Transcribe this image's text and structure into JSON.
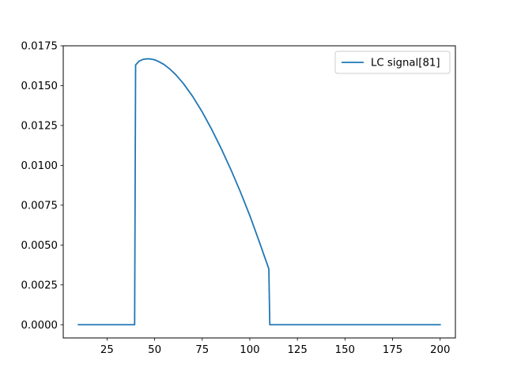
{
  "chart_data": {
    "type": "line",
    "title": "",
    "xlabel": "",
    "ylabel": "",
    "xlim": [
      2,
      208
    ],
    "ylim": [
      -0.00083,
      0.0175
    ],
    "xticks": [
      25,
      50,
      75,
      100,
      125,
      150,
      175,
      200
    ],
    "xtick_labels": [
      "25",
      "50",
      "75",
      "100",
      "125",
      "150",
      "175",
      "200"
    ],
    "yticks": [
      0,
      0.0025,
      0.005,
      0.0075,
      0.01,
      0.0125,
      0.015,
      0.0175
    ],
    "ytick_labels": [
      "0.0000",
      "0.0025",
      "0.0050",
      "0.0075",
      "0.0100",
      "0.0125",
      "0.0150",
      "0.0175"
    ],
    "grid": false,
    "legend_position": "top-right",
    "series": [
      {
        "name": "LC signal[81]",
        "color": "#1f77b4",
        "x": [
          10,
          39.5,
          40,
          42,
          44,
          46,
          47,
          48,
          50,
          52,
          55,
          58,
          61,
          65,
          70,
          75,
          80,
          85,
          90,
          95,
          100,
          105,
          110,
          110.5,
          120,
          140,
          160,
          180,
          200
        ],
        "y": [
          0,
          0,
          0.0163,
          0.01655,
          0.01665,
          0.01668,
          0.01668,
          0.01667,
          0.01662,
          0.01652,
          0.01632,
          0.01604,
          0.0157,
          0.01515,
          0.01432,
          0.01335,
          0.01225,
          0.01105,
          0.00975,
          0.00835,
          0.00685,
          0.0052,
          0.0035,
          0,
          0,
          0,
          0,
          0,
          0
        ]
      }
    ]
  }
}
